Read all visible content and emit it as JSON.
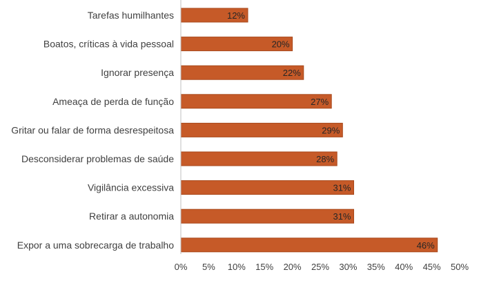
{
  "chart_data": {
    "type": "bar",
    "orientation": "horizontal",
    "title": "",
    "xlabel": "",
    "ylabel": "",
    "categories": [
      "Tarefas humilhantes",
      "Boatos, críticas à vida pessoal",
      "Ignorar presença",
      "Ameaça de perda de função",
      "Gritar ou falar de forma desrespeitosa",
      "Desconsiderar problemas de saúde",
      "Vigilância excessiva",
      "Retirar a autonomia",
      "Expor a uma sobrecarga de trabalho"
    ],
    "values": [
      12,
      20,
      22,
      27,
      29,
      28,
      31,
      31,
      46
    ],
    "data_labels": [
      "12%",
      "20%",
      "22%",
      "27%",
      "29%",
      "28%",
      "31%",
      "31%",
      "46%"
    ],
    "xlim": [
      0,
      50
    ],
    "x_ticks": [
      0,
      5,
      10,
      15,
      20,
      25,
      30,
      35,
      40,
      45,
      50
    ],
    "x_tick_labels": [
      "0%",
      "5%",
      "10%",
      "15%",
      "20%",
      "25%",
      "30%",
      "35%",
      "40%",
      "45%",
      "50%"
    ],
    "grid": false,
    "legend": "none",
    "colors": {
      "bar_fill": "#C65A28",
      "bar_edge": "#A8481B",
      "axis": "#BFBFBF",
      "text": "#404040"
    }
  }
}
